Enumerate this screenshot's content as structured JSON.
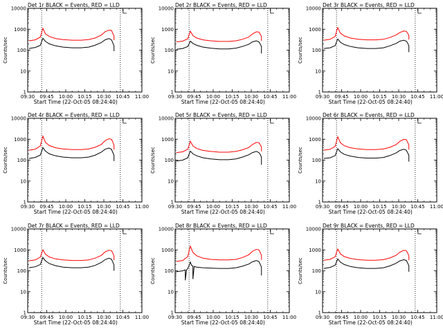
{
  "figure": {
    "xlabel": "Start Time (22-Oct-05 08:24:40)",
    "ylabel": "Counts/sec",
    "x_ticks": [
      "09:30",
      "09:45",
      "10:00",
      "10:15",
      "10:30",
      "10:45",
      "11:00"
    ],
    "y_ticks": [
      "1",
      "10",
      "100",
      "1000",
      "10000"
    ],
    "y_scale": "log",
    "colors": {
      "events": "#000000",
      "lld": "#ff0000",
      "background": "#ffffff"
    }
  },
  "chart_data": [
    {
      "type": "line",
      "title": "Det 1r BLACK = Events, RED = LLD",
      "xlim": [
        "09:30",
        "11:00"
      ],
      "ylim": [
        1,
        10000
      ],
      "vlines": [
        "09:41",
        "10:43"
      ],
      "series": [
        {
          "name": "Events",
          "color": "#000000",
          "x": [
            "09:31",
            "09:36",
            "09:40",
            "09:41",
            "09:42",
            "09:44",
            "09:47",
            "09:52",
            "09:58",
            "10:05",
            "10:12",
            "10:18",
            "10:23",
            "10:28",
            "10:31",
            "10:34",
            "10:36",
            "10:37",
            "10:38",
            "10:38"
          ],
          "values": [
            120,
            135,
            170,
            260,
            370,
            260,
            200,
            160,
            140,
            130,
            130,
            140,
            170,
            230,
            310,
            360,
            310,
            230,
            160,
            90
          ]
        },
        {
          "name": "LLD",
          "color": "#ff0000",
          "x": [
            "09:31",
            "09:36",
            "09:40",
            "09:41",
            "09:42",
            "09:44",
            "09:47",
            "09:52",
            "09:58",
            "10:05",
            "10:12",
            "10:18",
            "10:23",
            "10:28",
            "10:31",
            "10:34",
            "10:36",
            "10:37",
            "10:38",
            "10:38"
          ],
          "values": [
            280,
            310,
            420,
            700,
            1100,
            600,
            450,
            360,
            320,
            300,
            300,
            320,
            380,
            520,
            760,
            900,
            880,
            650,
            480,
            300
          ]
        }
      ]
    },
    {
      "type": "line",
      "title": "Det 2r BLACK = Events, RED = LLD",
      "xlim": [
        "09:30",
        "11:00"
      ],
      "ylim": [
        1,
        10000
      ],
      "vlines": [
        "09:41",
        "10:43"
      ],
      "series": [
        {
          "name": "Events",
          "color": "#000000",
          "x": [
            "09:31",
            "09:36",
            "09:40",
            "09:41",
            "09:42",
            "09:44",
            "09:47",
            "09:52",
            "09:58",
            "10:05",
            "10:12",
            "10:18",
            "10:23",
            "10:28",
            "10:31",
            "10:34",
            "10:36",
            "10:37",
            "10:38",
            "10:38"
          ],
          "values": [
            110,
            120,
            150,
            200,
            270,
            210,
            170,
            140,
            125,
            115,
            115,
            125,
            150,
            190,
            250,
            280,
            250,
            200,
            150,
            70
          ]
        },
        {
          "name": "LLD",
          "color": "#ff0000",
          "x": [
            "09:31",
            "09:36",
            "09:40",
            "09:41",
            "09:42",
            "09:44",
            "09:47",
            "09:52",
            "09:58",
            "10:05",
            "10:12",
            "10:18",
            "10:23",
            "10:28",
            "10:31",
            "10:34",
            "10:36",
            "10:37",
            "10:38",
            "10:38"
          ],
          "values": [
            250,
            270,
            350,
            550,
            800,
            500,
            380,
            310,
            280,
            260,
            260,
            280,
            330,
            420,
            600,
            750,
            730,
            600,
            450,
            280
          ]
        }
      ]
    },
    {
      "type": "line",
      "title": "Det 3r BLACK = Events, RED = LLD",
      "xlim": [
        "09:30",
        "11:00"
      ],
      "ylim": [
        1,
        10000
      ],
      "vlines": [
        "09:41",
        "10:43"
      ],
      "series": [
        {
          "name": "Events",
          "color": "#000000",
          "x": [
            "09:31",
            "09:36",
            "09:40",
            "09:41",
            "09:42",
            "09:44",
            "09:47",
            "09:52",
            "09:58",
            "10:05",
            "10:12",
            "10:18",
            "10:23",
            "10:28",
            "10:31",
            "10:34",
            "10:36",
            "10:37",
            "10:38",
            "10:38"
          ],
          "values": [
            120,
            130,
            165,
            250,
            340,
            240,
            185,
            150,
            130,
            120,
            120,
            130,
            160,
            210,
            270,
            300,
            270,
            220,
            160,
            80
          ]
        },
        {
          "name": "LLD",
          "color": "#ff0000",
          "x": [
            "09:31",
            "09:36",
            "09:40",
            "09:41",
            "09:42",
            "09:44",
            "09:47",
            "09:52",
            "09:58",
            "10:05",
            "10:12",
            "10:18",
            "10:23",
            "10:28",
            "10:31",
            "10:34",
            "10:36",
            "10:37",
            "10:38",
            "10:38"
          ],
          "values": [
            300,
            330,
            460,
            800,
            1200,
            650,
            480,
            380,
            330,
            310,
            310,
            330,
            400,
            530,
            700,
            820,
            800,
            650,
            500,
            320
          ]
        }
      ]
    },
    {
      "type": "line",
      "title": "Det 4r BLACK = Events, RED = LLD",
      "xlim": [
        "09:30",
        "11:00"
      ],
      "ylim": [
        1,
        10000
      ],
      "vlines": [
        "09:41",
        "10:43"
      ],
      "series": [
        {
          "name": "Events",
          "color": "#000000",
          "x": [
            "09:31",
            "09:36",
            "09:40",
            "09:41",
            "09:42",
            "09:44",
            "09:47",
            "09:52",
            "09:58",
            "10:05",
            "10:12",
            "10:18",
            "10:23",
            "10:28",
            "10:31",
            "10:34",
            "10:36",
            "10:37",
            "10:38",
            "10:38"
          ],
          "values": [
            120,
            135,
            175,
            270,
            400,
            270,
            200,
            160,
            140,
            130,
            130,
            140,
            170,
            240,
            330,
            380,
            330,
            240,
            170,
            90
          ]
        },
        {
          "name": "LLD",
          "color": "#ff0000",
          "x": [
            "09:31",
            "09:36",
            "09:40",
            "09:41",
            "09:42",
            "09:44",
            "09:47",
            "09:52",
            "09:58",
            "10:05",
            "10:12",
            "10:18",
            "10:23",
            "10:28",
            "10:31",
            "10:34",
            "10:36",
            "10:37",
            "10:38",
            "10:38"
          ],
          "values": [
            300,
            330,
            480,
            850,
            1400,
            700,
            500,
            390,
            340,
            320,
            320,
            340,
            410,
            560,
            850,
            1050,
            1000,
            750,
            520,
            320
          ]
        }
      ]
    },
    {
      "type": "line",
      "title": "Det 5r BLACK = Events, RED = LLD",
      "xlim": [
        "09:30",
        "11:00"
      ],
      "ylim": [
        1,
        10000
      ],
      "vlines": [
        "09:41",
        "10:43"
      ],
      "series": [
        {
          "name": "Events",
          "color": "#000000",
          "x": [
            "09:31",
            "09:36",
            "09:40",
            "09:41",
            "09:42",
            "09:44",
            "09:47",
            "09:52",
            "09:58",
            "10:05",
            "10:12",
            "10:18",
            "10:23",
            "10:28",
            "10:31",
            "10:34",
            "10:36",
            "10:37",
            "10:38",
            "10:38"
          ],
          "values": [
            90,
            100,
            130,
            190,
            270,
            200,
            160,
            130,
            115,
            105,
            105,
            115,
            140,
            180,
            230,
            260,
            230,
            190,
            140,
            60
          ]
        },
        {
          "name": "LLD",
          "color": "#ff0000",
          "x": [
            "09:31",
            "09:36",
            "09:40",
            "09:41",
            "09:42",
            "09:44",
            "09:47",
            "09:52",
            "09:58",
            "10:05",
            "10:12",
            "10:18",
            "10:23",
            "10:28",
            "10:31",
            "10:34",
            "10:36",
            "10:37",
            "10:38",
            "10:38"
          ],
          "values": [
            230,
            250,
            330,
            520,
            800,
            480,
            360,
            290,
            260,
            240,
            240,
            260,
            310,
            400,
            560,
            700,
            680,
            560,
            420,
            260
          ]
        }
      ]
    },
    {
      "type": "line",
      "title": "Det 6r BLACK = Events, RED = LLD",
      "xlim": [
        "09:30",
        "11:00"
      ],
      "ylim": [
        1,
        10000
      ],
      "vlines": [
        "09:41",
        "10:43"
      ],
      "series": [
        {
          "name": "Events",
          "color": "#000000",
          "x": [
            "09:31",
            "09:36",
            "09:40",
            "09:41",
            "09:42",
            "09:44",
            "09:47",
            "09:52",
            "09:58",
            "10:05",
            "10:12",
            "10:18",
            "10:23",
            "10:28",
            "10:31",
            "10:34",
            "10:36",
            "10:37",
            "10:38",
            "10:38"
          ],
          "values": [
            120,
            130,
            165,
            250,
            350,
            250,
            190,
            155,
            135,
            125,
            125,
            135,
            165,
            220,
            290,
            330,
            300,
            230,
            170,
            85
          ]
        },
        {
          "name": "LLD",
          "color": "#ff0000",
          "x": [
            "09:31",
            "09:36",
            "09:40",
            "09:41",
            "09:42",
            "09:44",
            "09:47",
            "09:52",
            "09:58",
            "10:05",
            "10:12",
            "10:18",
            "10:23",
            "10:28",
            "10:31",
            "10:34",
            "10:36",
            "10:37",
            "10:38",
            "10:38"
          ],
          "values": [
            300,
            330,
            460,
            800,
            1300,
            680,
            490,
            390,
            340,
            320,
            320,
            340,
            410,
            550,
            800,
            980,
            950,
            720,
            520,
            320
          ]
        }
      ]
    },
    {
      "type": "line",
      "title": "Det 7r BLACK = Events, RED = LLD",
      "xlim": [
        "09:30",
        "11:00"
      ],
      "ylim": [
        1,
        10000
      ],
      "vlines": [
        "09:41",
        "10:43"
      ],
      "series": [
        {
          "name": "Events",
          "color": "#000000",
          "x": [
            "09:31",
            "09:36",
            "09:40",
            "09:41",
            "09:42",
            "09:44",
            "09:47",
            "09:52",
            "09:58",
            "10:05",
            "10:12",
            "10:18",
            "10:23",
            "10:28",
            "10:31",
            "10:34",
            "10:36",
            "10:37",
            "10:38",
            "10:38"
          ],
          "values": [
            140,
            155,
            200,
            300,
            430,
            300,
            220,
            175,
            150,
            140,
            140,
            150,
            180,
            250,
            340,
            400,
            360,
            270,
            190,
            100
          ]
        },
        {
          "name": "LLD",
          "color": "#ff0000",
          "x": [
            "09:31",
            "09:36",
            "09:40",
            "09:41",
            "09:42",
            "09:44",
            "09:47",
            "09:52",
            "09:58",
            "10:05",
            "10:12",
            "10:18",
            "10:23",
            "10:28",
            "10:31",
            "10:34",
            "10:36",
            "10:37",
            "10:38",
            "10:38"
          ],
          "values": [
            300,
            330,
            450,
            700,
            1000,
            620,
            460,
            370,
            330,
            310,
            310,
            330,
            400,
            540,
            800,
            950,
            920,
            720,
            520,
            320
          ]
        }
      ]
    },
    {
      "type": "line",
      "title": "Det 8r BLACK = Events, RED = LLD",
      "xlim": [
        "09:30",
        "11:00"
      ],
      "ylim": [
        1,
        10000
      ],
      "vlines": [
        "09:41",
        "10:43"
      ],
      "series": [
        {
          "name": "Events",
          "color": "#000000",
          "x": [
            "09:31",
            "09:36",
            "09:38",
            "09:38",
            "09:39",
            "09:40",
            "09:41",
            "09:42",
            "09:43",
            "09:44",
            "09:44",
            "09:45",
            "09:47",
            "09:52",
            "09:58",
            "10:05",
            "10:12",
            "10:18",
            "10:23",
            "10:28",
            "10:31",
            "10:34",
            "10:36",
            "10:37",
            "10:38",
            "10:38"
          ],
          "values": [
            90,
            100,
            110,
            35,
            110,
            130,
            180,
            260,
            180,
            170,
            40,
            160,
            150,
            140,
            135,
            130,
            130,
            140,
            165,
            210,
            270,
            310,
            280,
            210,
            150,
            60
          ]
        },
        {
          "name": "LLD",
          "color": "#ff0000",
          "x": [
            "09:31",
            "09:36",
            "09:40",
            "09:41",
            "09:42",
            "09:44",
            "09:47",
            "09:52",
            "09:58",
            "10:05",
            "10:12",
            "10:18",
            "10:23",
            "10:28",
            "10:31",
            "10:34",
            "10:36",
            "10:37",
            "10:38",
            "10:38"
          ],
          "values": [
            280,
            310,
            480,
            900,
            1500,
            750,
            520,
            400,
            350,
            330,
            330,
            350,
            430,
            580,
            850,
            1050,
            1000,
            770,
            540,
            330
          ]
        }
      ]
    },
    {
      "type": "line",
      "title": "Det 9r BLACK = Events, RED = LLD",
      "xlim": [
        "09:30",
        "11:00"
      ],
      "ylim": [
        1,
        10000
      ],
      "vlines": [
        "09:41",
        "10:43"
      ],
      "series": [
        {
          "name": "Events",
          "color": "#000000",
          "x": [
            "09:31",
            "09:36",
            "09:40",
            "09:41",
            "09:42",
            "09:44",
            "09:47",
            "09:52",
            "09:58",
            "10:05",
            "10:12",
            "10:18",
            "10:23",
            "10:28",
            "10:31",
            "10:34",
            "10:36",
            "10:37",
            "10:38",
            "10:38"
          ],
          "values": [
            130,
            145,
            185,
            270,
            370,
            260,
            200,
            160,
            140,
            130,
            130,
            140,
            170,
            230,
            300,
            340,
            310,
            240,
            175,
            90
          ]
        },
        {
          "name": "LLD",
          "color": "#ff0000",
          "x": [
            "09:31",
            "09:36",
            "09:40",
            "09:41",
            "09:42",
            "09:44",
            "09:47",
            "09:52",
            "09:58",
            "10:05",
            "10:12",
            "10:18",
            "10:23",
            "10:28",
            "10:31",
            "10:34",
            "10:36",
            "10:37",
            "10:38",
            "10:38"
          ],
          "values": [
            320,
            350,
            470,
            750,
            1100,
            650,
            480,
            390,
            340,
            320,
            320,
            340,
            410,
            550,
            780,
            950,
            920,
            720,
            520,
            320
          ]
        }
      ]
    }
  ]
}
